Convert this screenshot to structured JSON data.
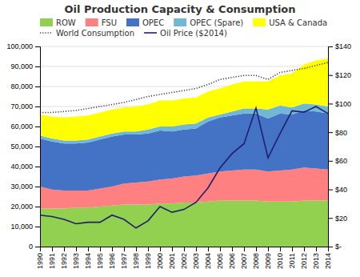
{
  "chart_data": {
    "type": "area",
    "title": "Oil Production Capacity & Consumption",
    "stacked": true,
    "grid": true,
    "legend": "upper left",
    "x": [
      1990,
      1991,
      1992,
      1993,
      1994,
      1995,
      1996,
      1997,
      1998,
      1999,
      2000,
      2001,
      2002,
      2003,
      2004,
      2005,
      2006,
      2007,
      2008,
      2009,
      2010,
      2011,
      2012,
      2013,
      2014
    ],
    "xlim": [
      1990,
      2014
    ],
    "xticks": [
      1990,
      1991,
      1992,
      1993,
      1994,
      1995,
      1996,
      1997,
      1998,
      1999,
      2000,
      2001,
      2002,
      2003,
      2004,
      2005,
      2006,
      2007,
      2008,
      2009,
      2010,
      2011,
      2012,
      2013,
      2014
    ],
    "ylim": [
      0,
      100000
    ],
    "yticks": [
      0,
      {
        "value": 10000,
        "label": "10,000"
      },
      {
        "value": 20000,
        "label": "20,000"
      },
      {
        "value": 30000,
        "label": "30,000"
      },
      {
        "value": 40000,
        "label": "40,000"
      },
      {
        "value": 50000,
        "label": "50,000"
      },
      {
        "value": 60000,
        "label": "60,000"
      },
      {
        "value": 70000,
        "label": "70,000"
      },
      {
        "value": 80000,
        "label": "80,000"
      },
      {
        "value": 90000,
        "label": "90,000"
      },
      {
        "value": 100000,
        "label": "100,000"
      }
    ],
    "y2lim": [
      0,
      140
    ],
    "y2ticks": [
      {
        "value": 0,
        "label": "$-"
      },
      {
        "value": 20,
        "label": "$20"
      },
      {
        "value": 40,
        "label": "$40"
      },
      {
        "value": 60,
        "label": "$60"
      },
      {
        "value": 80,
        "label": "$80"
      },
      {
        "value": 100,
        "label": "$100"
      },
      {
        "value": 120,
        "label": "$120"
      },
      {
        "value": 140,
        "label": "$140"
      }
    ],
    "series": [
      {
        "name": "ROW",
        "type": "area",
        "color": "#92d050",
        "values": [
          19000,
          19000,
          19000,
          19500,
          19500,
          20000,
          20500,
          21000,
          21000,
          21000,
          21500,
          21500,
          22000,
          22000,
          22500,
          23000,
          23000,
          23000,
          23000,
          22500,
          22500,
          22500,
          23000,
          23000,
          23000
        ]
      },
      {
        "name": "FSU",
        "type": "area",
        "color": "#ff8080",
        "values": [
          11000,
          9500,
          9000,
          8500,
          8500,
          9000,
          9500,
          10500,
          11000,
          11500,
          12000,
          12500,
          13000,
          13500,
          14000,
          14500,
          15000,
          15500,
          15500,
          15000,
          15500,
          16000,
          16500,
          16000,
          15500
        ]
      },
      {
        "name": "OPEC",
        "type": "area",
        "color": "#4472c4",
        "values": [
          24000,
          24000,
          23500,
          23500,
          24000,
          24500,
          25000,
          24500,
          24000,
          24000,
          24500,
          23500,
          23500,
          23500,
          26000,
          27000,
          27500,
          28000,
          28000,
          26500,
          28500,
          27500,
          28500,
          28500,
          28000
        ]
      },
      {
        "name": "OPEC (Spare)",
        "type": "area",
        "color": "#70b8d4",
        "values": [
          1500,
          1500,
          1500,
          1500,
          1500,
          1500,
          1500,
          1500,
          1500,
          2000,
          2000,
          2500,
          2500,
          2500,
          2000,
          1500,
          2000,
          2500,
          2500,
          4500,
          4000,
          3500,
          3500,
          3500,
          3500
        ]
      },
      {
        "name": "USA & Canada",
        "type": "area",
        "color": "#ffff00",
        "values": [
          10500,
          11000,
          11500,
          12000,
          12000,
          12000,
          12000,
          12000,
          12500,
          12500,
          13000,
          13000,
          13000,
          13000,
          13000,
          13000,
          13500,
          13500,
          13500,
          14000,
          15000,
          17000,
          19500,
          22000,
          24000
        ]
      },
      {
        "name": "World Consumption",
        "type": "line",
        "line_style": "dotted",
        "color": "#404040",
        "values": [
          67000,
          67000,
          67500,
          68000,
          69000,
          70000,
          71000,
          72000,
          73500,
          75000,
          76000,
          77000,
          78000,
          79000,
          81000,
          83500,
          84500,
          85500,
          85500,
          83500,
          87000,
          88000,
          89000,
          90500,
          92000
        ]
      },
      {
        "name": "Oil Price ($2014)",
        "type": "line",
        "line_style": "solid",
        "axis": "y2",
        "color": "#1f1f6e",
        "values": [
          22,
          21,
          19,
          16,
          17,
          17,
          22,
          19,
          13,
          18,
          28,
          24,
          26,
          31,
          41,
          55,
          65,
          72,
          97,
          62,
          79,
          95,
          94,
          98,
          93
        ]
      }
    ]
  }
}
